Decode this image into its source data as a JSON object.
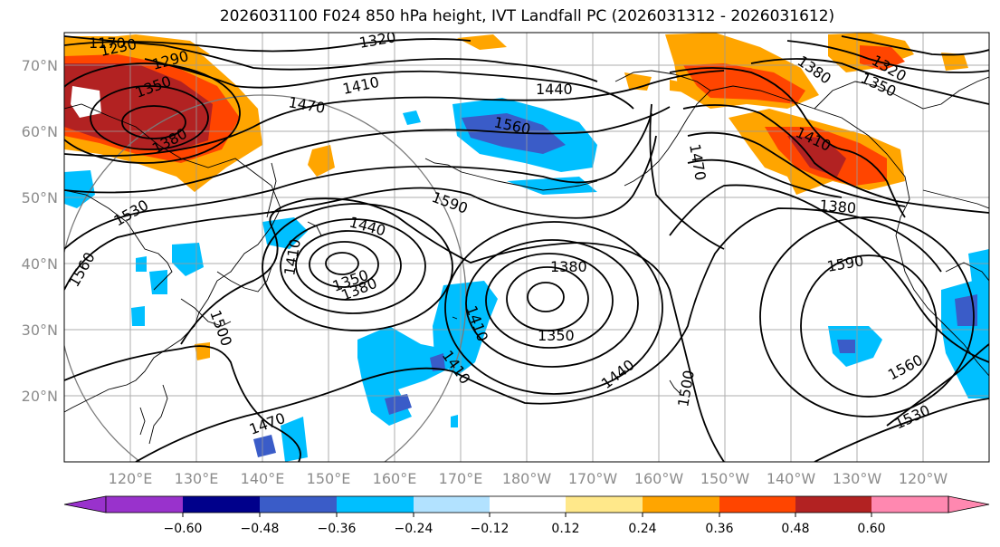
{
  "title": "2026031100 F024 850 hPa height, IVT Landfall PC (2026031312 - 2026031612)",
  "lat_labels": [
    "70°N",
    "60°N",
    "50°N",
    "40°N",
    "30°N",
    "20°N"
  ],
  "lon_labels": [
    "120°E",
    "130°E",
    "140°E",
    "150°E",
    "160°E",
    "170°E",
    "180°W",
    "170°W",
    "160°W",
    "150°W",
    "140°W",
    "130°W",
    "120°W"
  ],
  "colorbar": {
    "ticks": [
      "−0.60",
      "−0.48",
      "−0.36",
      "−0.24",
      "−0.12",
      "0.12",
      "0.24",
      "0.36",
      "0.48",
      "0.60"
    ],
    "colors": [
      "#9932cc",
      "#00008b",
      "#3a5cc8",
      "#00bfff",
      "#b2e2ff",
      "#ffffff",
      "#ffe88a",
      "#ffa500",
      "#ff4500",
      "#b22222",
      "#ff88b0"
    ]
  },
  "contour_labels": [
    "1170",
    "1230",
    "1290",
    "1320",
    "1350",
    "1380",
    "1410",
    "1440",
    "1470",
    "1500",
    "1530",
    "1560",
    "1590"
  ]
}
